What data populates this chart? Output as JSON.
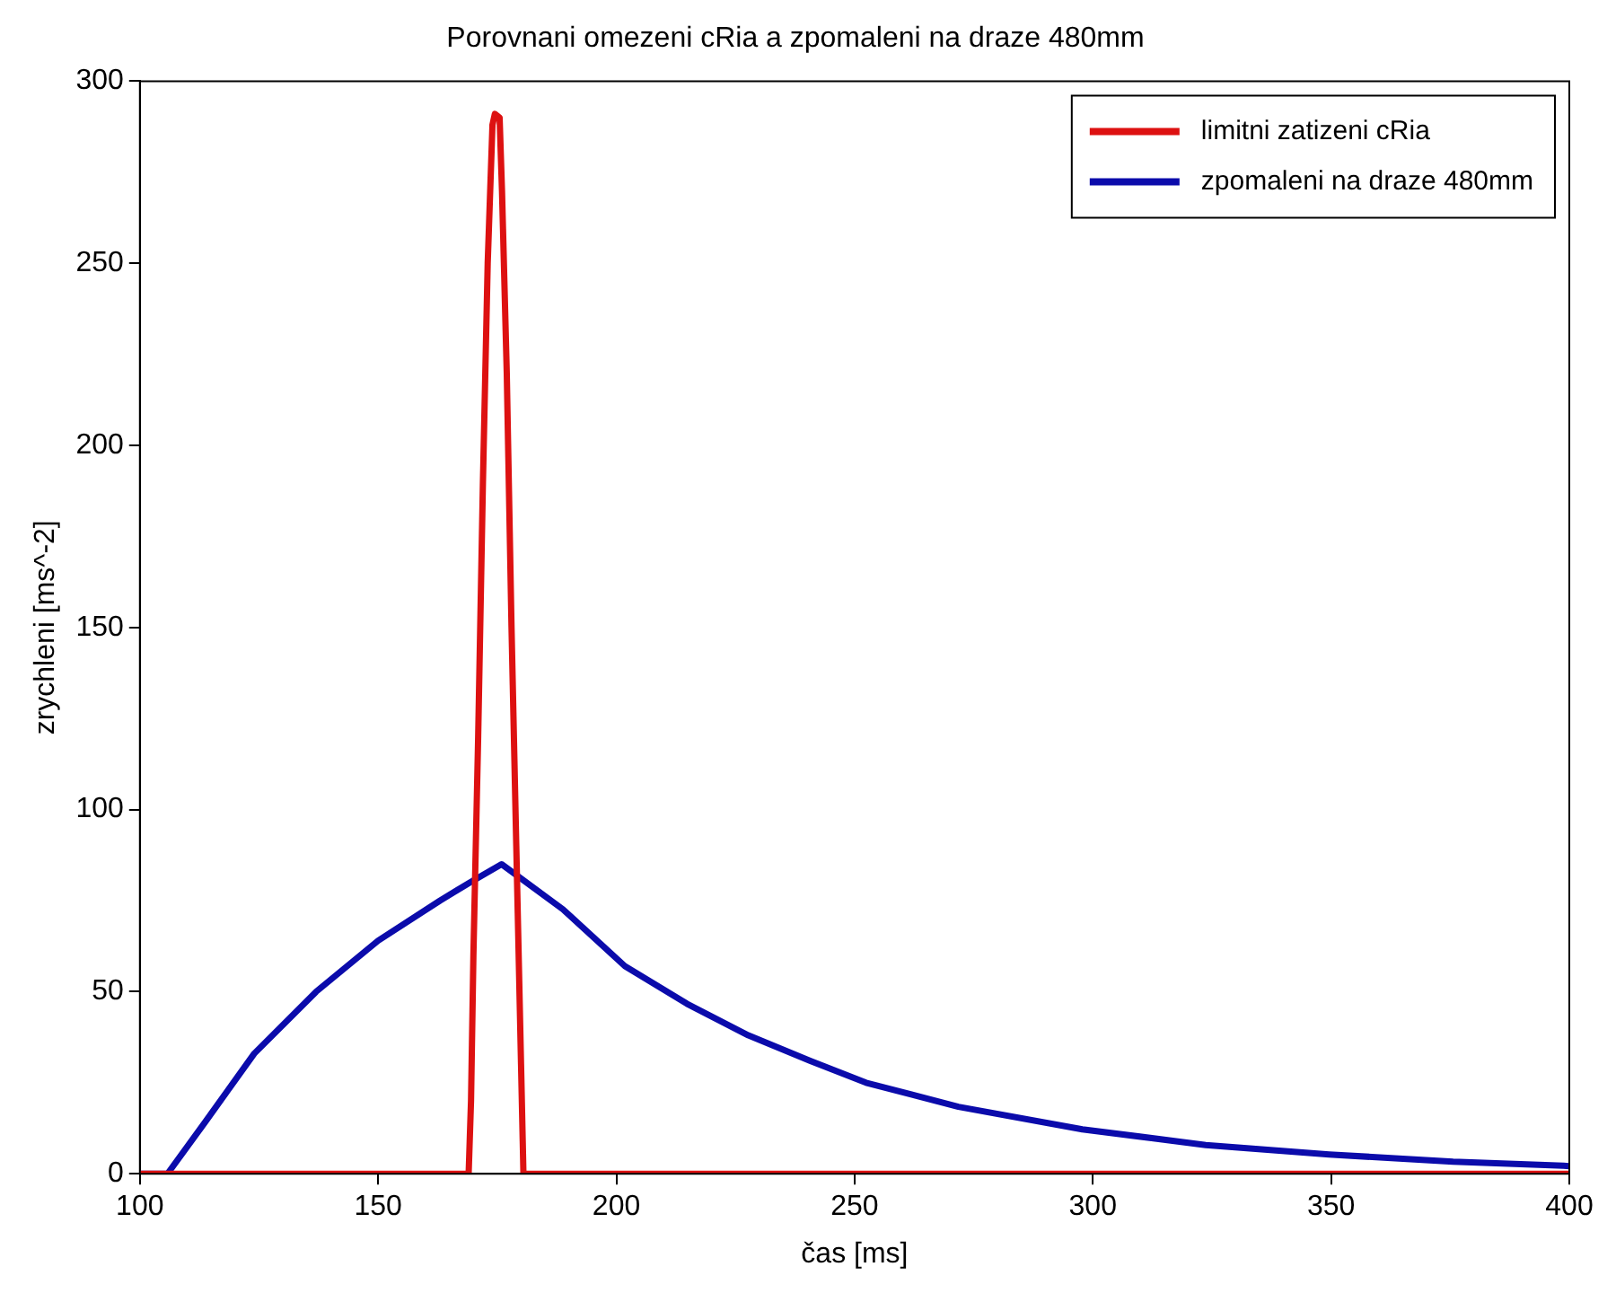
{
  "chart_data": {
    "type": "line",
    "title": "Porovnani omezeni cRia a zpomaleni na draze 480mm",
    "xlabel": "čas [ms]",
    "ylabel": "zrychleni [ms^-2]",
    "xlim": [
      100,
      400
    ],
    "xticks": [
      100,
      150,
      200,
      250,
      300,
      350,
      400
    ],
    "ylim": [
      0,
      300
    ],
    "yticks": [
      0,
      50,
      100,
      150,
      200,
      250,
      300
    ],
    "grid": false,
    "legend": "top right",
    "marker": "none",
    "line_style": "solid",
    "series": [
      {
        "name": "limitni zatizeni cRia",
        "color": "#dd1111",
        "x": [
          100,
          169,
          169.5,
          170,
          171,
          172,
          173,
          174,
          174.5,
          175.5,
          176,
          177,
          178,
          179,
          180,
          180.5,
          400
        ],
        "values": [
          0,
          0,
          20,
          60,
          120,
          190,
          250,
          288,
          291,
          290,
          270,
          220,
          150,
          90,
          30,
          0,
          0
        ]
      },
      {
        "name": "zpomaleni na draze 480mm",
        "color": "#0b0bab",
        "x": [
          100,
          105.8,
          113.6,
          124,
          137,
          150,
          163,
          169.3,
          175.9,
          188.8,
          201.8,
          214.8,
          227.7,
          240.7,
          252.4,
          271.8,
          297.8,
          323.7,
          349.6,
          375.6,
          398.8,
          400
        ],
        "values": [
          0,
          0,
          14,
          33,
          50,
          64,
          75,
          80,
          85,
          72.6,
          57,
          46.7,
          38,
          31,
          25,
          18.4,
          12.2,
          7.9,
          5.3,
          3.3,
          2.2,
          2.1
        ]
      }
    ]
  }
}
